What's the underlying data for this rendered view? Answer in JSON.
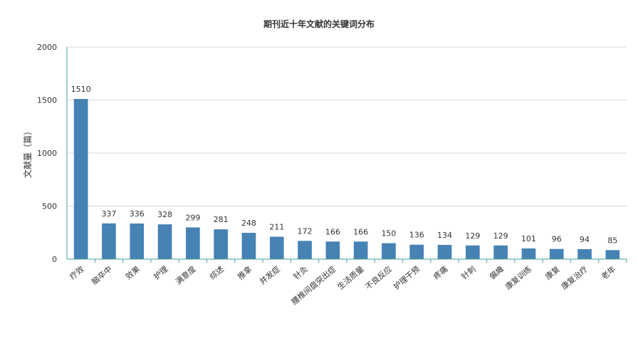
{
  "chart_data": {
    "type": "bar",
    "title": "期刊近十年文献的关键词分布",
    "ylabel": "文献量（篇）",
    "xlabel": "",
    "ylim": [
      0,
      2000
    ],
    "yticks": [
      0,
      500,
      1000,
      1500,
      2000
    ],
    "grid": true,
    "bar_color": "#4682b4",
    "categories": [
      "疗效",
      "脑卒中",
      "效果",
      "护理",
      "满意度",
      "综述",
      "推拿",
      "并发症",
      "针灸",
      "腰椎间盘突出症",
      "生活质量",
      "不良反应",
      "护理干预",
      "疼痛",
      "针刺",
      "偏瘫",
      "康复训练",
      "康复",
      "康复治疗",
      "老年"
    ],
    "values": [
      1510,
      337,
      336,
      328,
      299,
      281,
      248,
      211,
      172,
      166,
      166,
      150,
      136,
      134,
      129,
      129,
      101,
      96,
      94,
      85
    ]
  }
}
